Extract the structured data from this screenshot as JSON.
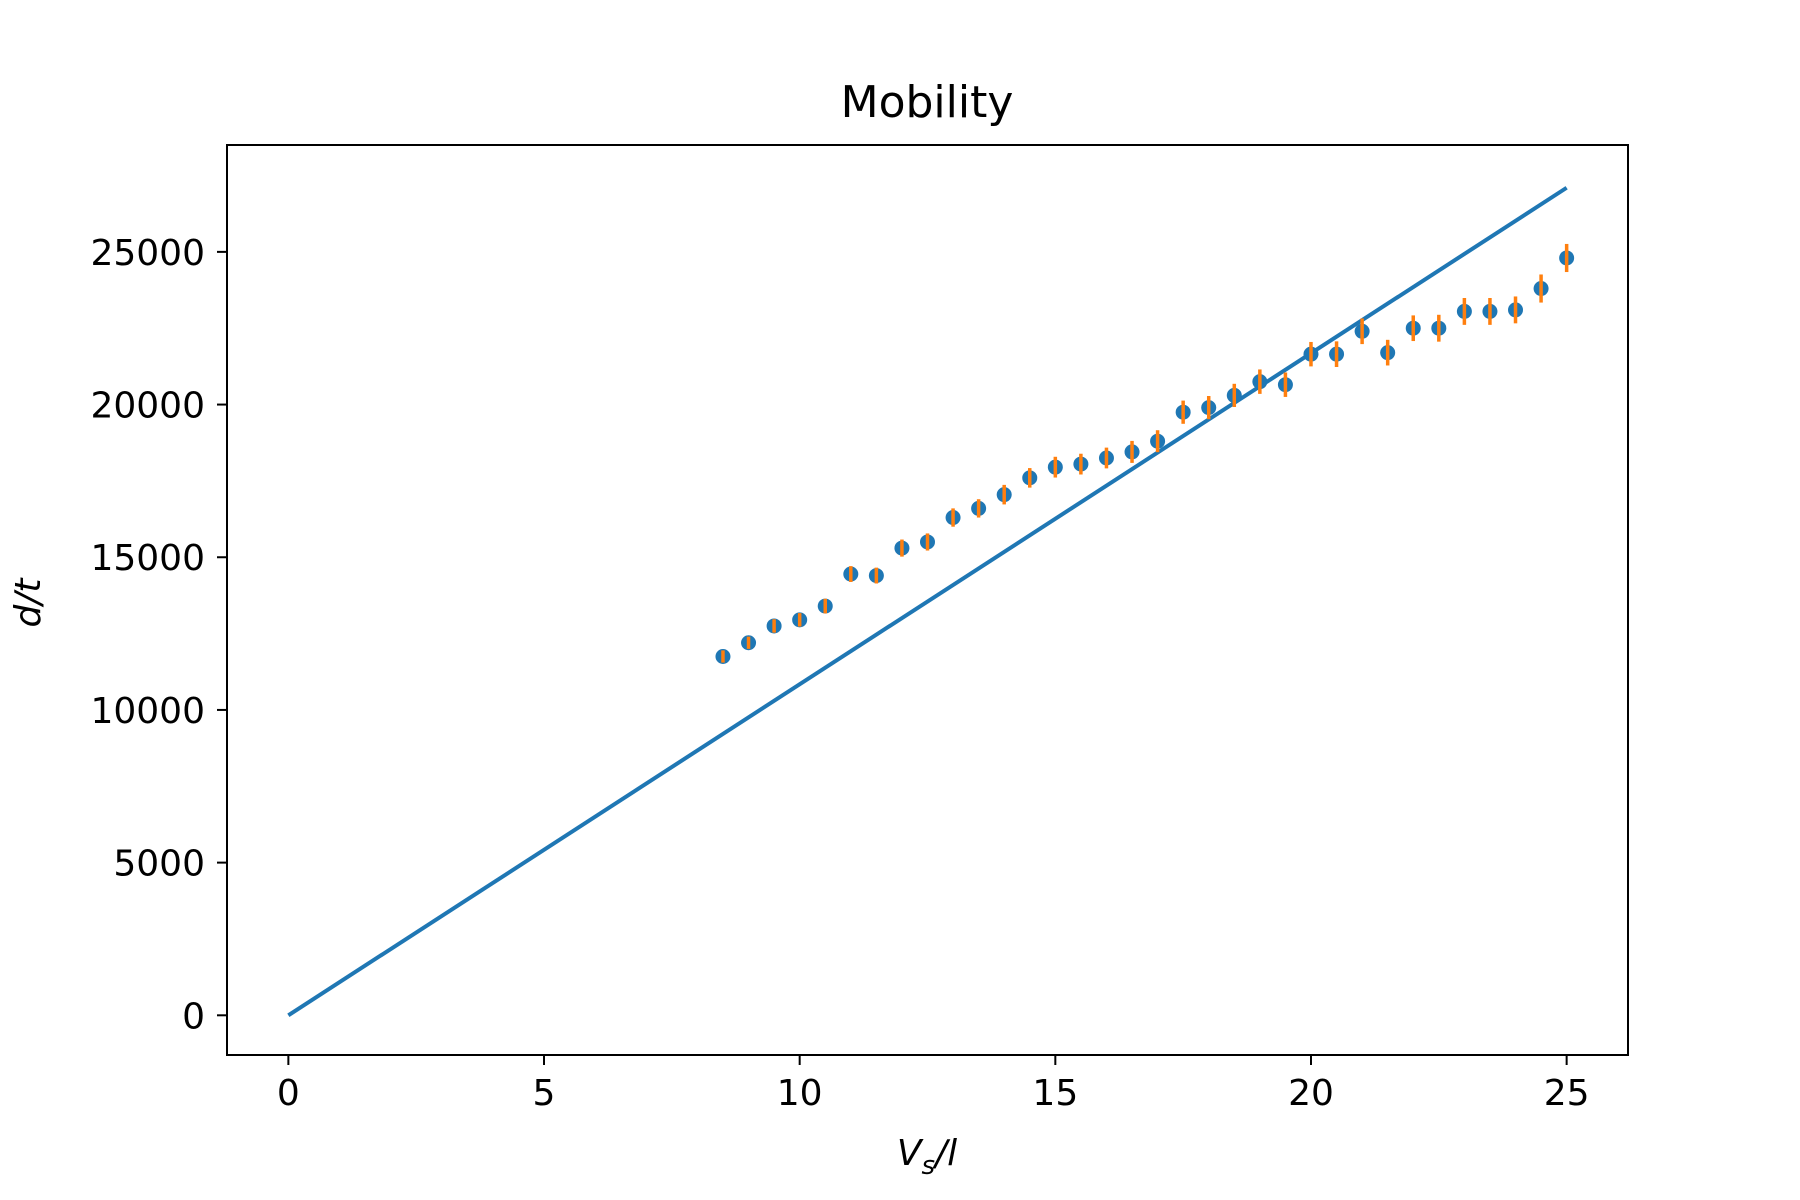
{
  "chart_data": {
    "type": "scatter",
    "title": "Mobility",
    "xlabel": {
      "main": "V",
      "sub": "s",
      "rest": "/l"
    },
    "ylabel": "d/t",
    "xlim": [
      -1.2,
      26.2
    ],
    "ylim": [
      -1300,
      28500
    ],
    "xticks": [
      0,
      5,
      10,
      15,
      20,
      25
    ],
    "yticks": [
      0,
      5000,
      10000,
      15000,
      20000,
      25000
    ],
    "grid": false,
    "colors": {
      "points": "#1f77b4",
      "errorbars": "#ff7f0e",
      "fit": "#1f77b4"
    },
    "fit_line": {
      "x": [
        0,
        25
      ],
      "y": [
        0,
        27100
      ]
    },
    "points": {
      "x": [
        8.5,
        9,
        9.5,
        10,
        10.5,
        11,
        11.5,
        12,
        12.5,
        13,
        13.5,
        14,
        14.5,
        15,
        15.5,
        16,
        16.5,
        17,
        17.5,
        18,
        18.5,
        19,
        19.5,
        20,
        20.5,
        21,
        21.5,
        22,
        22.5,
        23,
        23.5,
        24,
        24.5,
        25
      ],
      "y": [
        11750,
        12200,
        12750,
        12950,
        13400,
        14450,
        14400,
        15300,
        15500,
        16300,
        16600,
        17050,
        17600,
        17950,
        18050,
        18250,
        18450,
        18800,
        19750,
        19900,
        20300,
        20750,
        20650,
        21650,
        21650,
        22400,
        21700,
        22500,
        22500,
        23050,
        23050,
        23100,
        23800,
        24800
      ],
      "yerr": [
        200,
        200,
        220,
        220,
        240,
        260,
        260,
        280,
        280,
        300,
        300,
        320,
        320,
        340,
        340,
        340,
        360,
        360,
        380,
        380,
        380,
        400,
        400,
        400,
        420,
        420,
        420,
        420,
        440,
        440,
        440,
        440,
        460,
        460
      ]
    }
  }
}
